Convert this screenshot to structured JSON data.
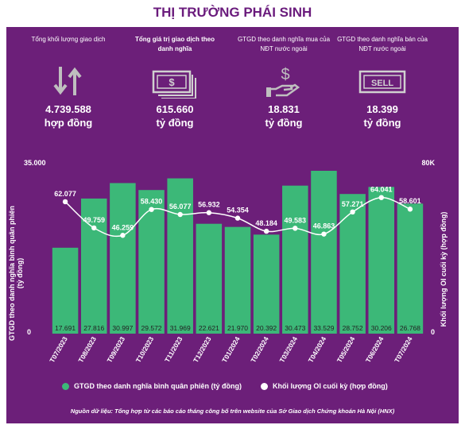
{
  "title": "THỊ TRƯỜNG PHÁI SINH",
  "kpis": [
    {
      "label": "Tổng khối lượng giao dịch",
      "value": "4.739.588",
      "unit": "hợp đồng",
      "icon": "up-down-arrows-icon"
    },
    {
      "label": "Tổng giá trị giao dịch theo danh nghĩa",
      "value": "615.660",
      "unit": "tỷ đồng",
      "icon": "banknotes-icon"
    },
    {
      "label": "GTGD theo danh nghĩa mua của NĐT nước ngoài",
      "value": "18.831",
      "unit": "tỷ đồng",
      "icon": "hand-dollar-icon"
    },
    {
      "label": "GTGD theo danh nghĩa bán của NĐT nước ngoài",
      "value": "18.399",
      "unit": "tỷ đồng",
      "icon": "sell-sign-icon"
    }
  ],
  "colors": {
    "panel": "#6c1f79",
    "bar": "#3cb878",
    "line": "#ffffff",
    "title": "#6a1b7c"
  },
  "chart_data": {
    "type": "bar",
    "categories": [
      "T07/2023",
      "T08/2023",
      "T09/2023",
      "T10/2023",
      "T11/2023",
      "T12/2023",
      "T01/2024",
      "T02/2024",
      "T03/2024",
      "T04/2024",
      "T05/2024",
      "T06/2024",
      "T07/2024"
    ],
    "series": [
      {
        "name": "GTGD theo danh nghĩa bình quân phiên (tỷ đồng)",
        "axis": "left",
        "kind": "bar",
        "values": [
          17691,
          27816,
          30997,
          29572,
          31969,
          22621,
          21970,
          20392,
          30473,
          33529,
          28752,
          30206,
          26768
        ],
        "labels": [
          "17.691",
          "27.816",
          "30.997",
          "29.572",
          "31.969",
          "22.621",
          "21.970",
          "20.392",
          "30.473",
          "33.529",
          "28.752",
          "30.206",
          "26.768"
        ]
      },
      {
        "name": "Khối lượng OI cuối kỳ (hợp đồng)",
        "axis": "right",
        "kind": "line",
        "values": [
          62077,
          49759,
          46259,
          58430,
          56077,
          56932,
          54354,
          48184,
          49583,
          46863,
          57271,
          64041,
          58601
        ],
        "labels": [
          "62.077",
          "49.759",
          "46.259",
          "58.430",
          "56.077",
          "56.932",
          "54.354",
          "48.184",
          "49.583",
          "46.863",
          "57.271",
          "64.041",
          "58.601"
        ]
      }
    ],
    "ylim_left": [
      0,
      35000
    ],
    "ylim_right": [
      0,
      80000
    ],
    "left_ticks": [
      "0",
      "35.000"
    ],
    "right_ticks": [
      "0",
      "80K"
    ],
    "ylabel_left": "GTGD theo danh nghĩa bình quân phiên (tỷ đồng)",
    "ylabel_right": "Khối lượng OI cuối kỳ (hợp đồng)"
  },
  "legend": {
    "bar_label": "GTGD theo danh nghĩa bình quân phiên (tỷ đồng)",
    "line_label": "Khối lượng OI cuối kỳ (hợp đồng)"
  },
  "source": "Nguồn dữ liệu: Tổng hợp từ các báo cáo tháng công bố trên website của Sở Giao dịch Chứng khoán Hà Nội (HNX)"
}
